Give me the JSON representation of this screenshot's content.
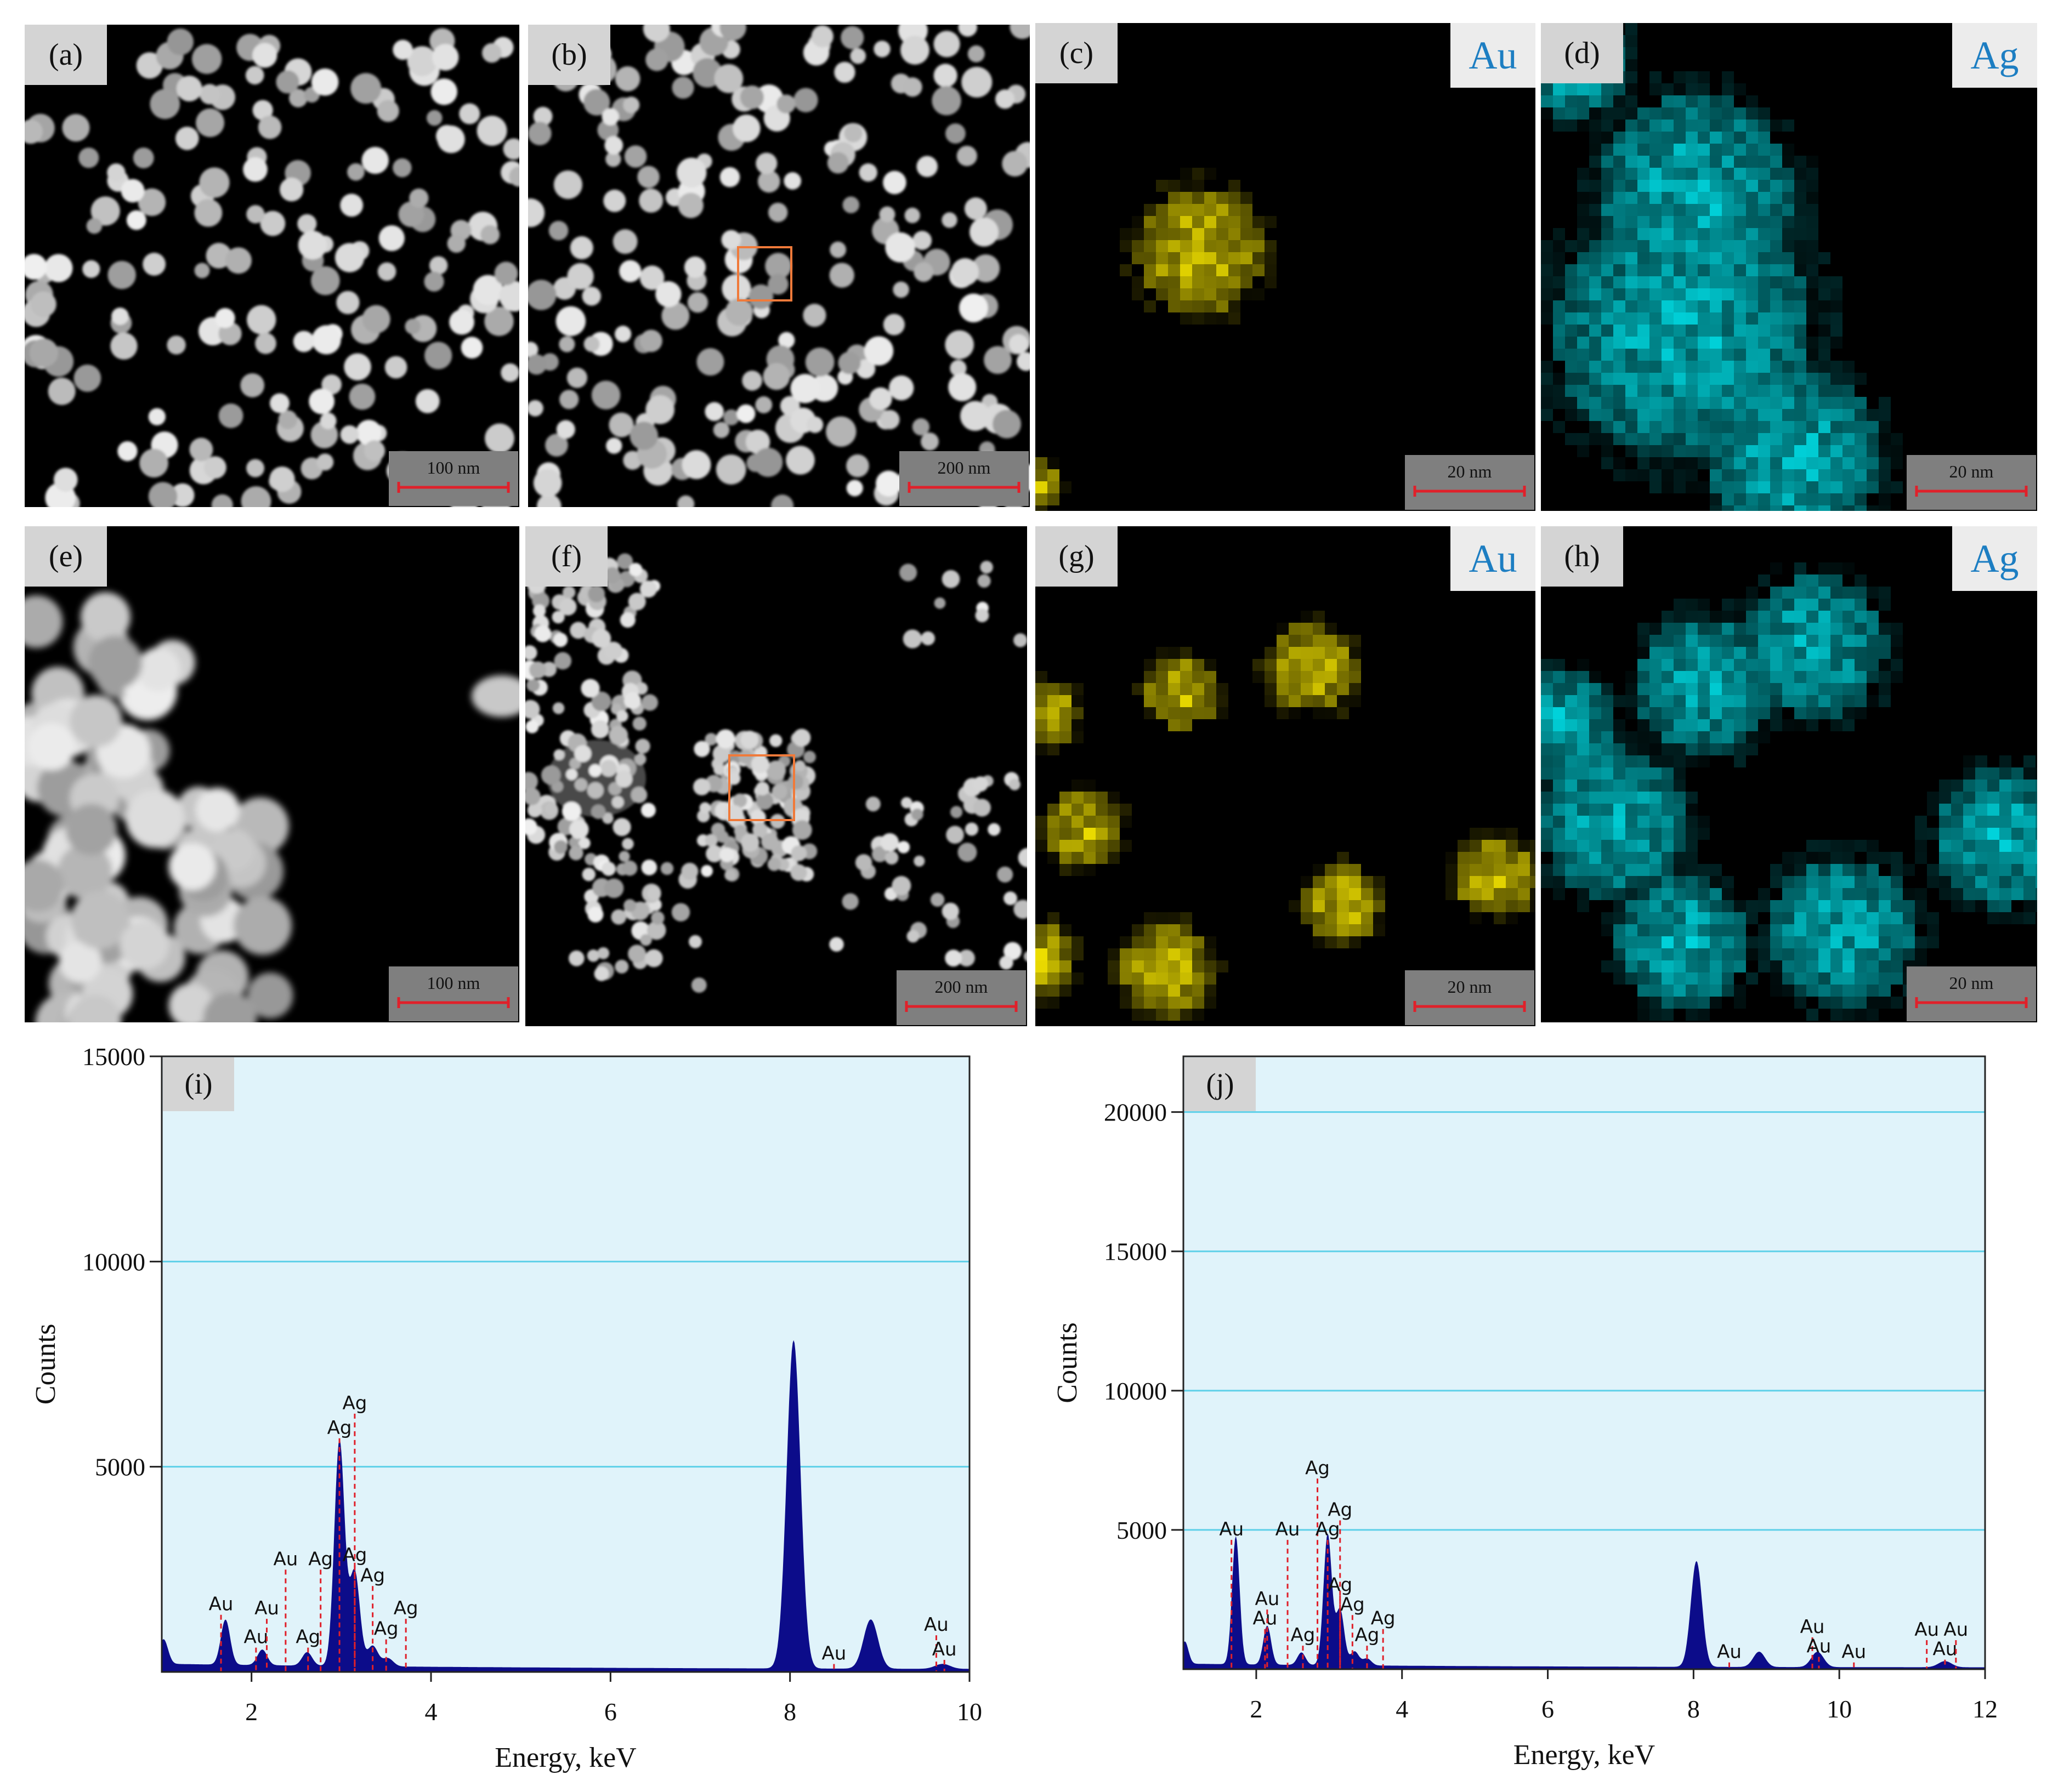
{
  "colors": {
    "au_map": "#f2e200",
    "ag_map": "#00d8e0",
    "element_label": "#1d7ec2",
    "spectrum_fill": "#0c0c8a",
    "plot_bg": "#e0f3fa",
    "gridline": "#5ed0e8",
    "marker_line": "#e0202a",
    "roi_box": "#f07a3a",
    "scalebar_line": "#e0202a"
  },
  "panels": [
    {
      "id": "a",
      "label": "(a)",
      "kind": "haadf",
      "scale": "100 nm"
    },
    {
      "id": "b",
      "label": "(b)",
      "kind": "haadf",
      "scale": "200 nm"
    },
    {
      "id": "c",
      "label": "(c)",
      "kind": "map",
      "element": "Au",
      "scale": "20 nm"
    },
    {
      "id": "d",
      "label": "(d)",
      "kind": "map",
      "element": "Ag",
      "scale": "20 nm"
    },
    {
      "id": "e",
      "label": "(e)",
      "kind": "haadf",
      "scale": "100 nm"
    },
    {
      "id": "f",
      "label": "(f)",
      "kind": "haadf",
      "scale": "200 nm"
    },
    {
      "id": "g",
      "label": "(g)",
      "kind": "map",
      "element": "Au",
      "scale": "20 nm"
    },
    {
      "id": "h",
      "label": "(h)",
      "kind": "map",
      "element": "Ag",
      "scale": "20 nm"
    }
  ],
  "chart_data": [
    {
      "type": "area",
      "panel_label": "(i)",
      "xlabel": "Energy, keV",
      "ylabel": "Counts",
      "xlim": [
        1,
        10
      ],
      "ylim": [
        0,
        15000
      ],
      "xticks": [
        2,
        4,
        6,
        8,
        10
      ],
      "yticks": [
        5000,
        10000,
        15000
      ],
      "grid": true,
      "peaks": [
        {
          "x": 1.02,
          "y": 600
        },
        {
          "x": 1.71,
          "y": 1100
        },
        {
          "x": 2.12,
          "y": 380
        },
        {
          "x": 2.62,
          "y": 330
        },
        {
          "x": 2.98,
          "y": 5500
        },
        {
          "x": 3.15,
          "y": 2300
        },
        {
          "x": 3.35,
          "y": 500
        },
        {
          "x": 3.52,
          "y": 200
        },
        {
          "x": 8.04,
          "y": 8000
        },
        {
          "x": 8.9,
          "y": 1200
        },
        {
          "x": 9.7,
          "y": 120
        }
      ],
      "markers": [
        {
          "text": "Au",
          "x": 1.66,
          "y": 1500
        },
        {
          "text": "Au",
          "x": 2.05,
          "y": 700
        },
        {
          "text": "Au",
          "x": 2.17,
          "y": 1400
        },
        {
          "text": "Au",
          "x": 2.38,
          "y": 2600
        },
        {
          "text": "Ag",
          "x": 2.63,
          "y": 700
        },
        {
          "text": "Ag",
          "x": 2.77,
          "y": 2600
        },
        {
          "text": "Ag",
          "x": 2.98,
          "y": 5800
        },
        {
          "text": "Ag",
          "x": 3.15,
          "y": 6400
        },
        {
          "text": "Ag",
          "x": 3.15,
          "y": 2700
        },
        {
          "text": "Ag",
          "x": 3.35,
          "y": 2200
        },
        {
          "text": "Ag",
          "x": 3.5,
          "y": 900
        },
        {
          "text": "Ag",
          "x": 3.72,
          "y": 1400
        },
        {
          "text": "Au",
          "x": 8.49,
          "y": 300
        },
        {
          "text": "Au",
          "x": 9.63,
          "y": 1000
        },
        {
          "text": "Au",
          "x": 9.72,
          "y": 400
        }
      ]
    },
    {
      "type": "area",
      "panel_label": "(j)",
      "xlabel": "Energy, keV",
      "ylabel": "Counts",
      "xlim": [
        1,
        12
      ],
      "ylim": [
        0,
        22000
      ],
      "xticks": [
        2,
        4,
        6,
        8,
        10,
        12
      ],
      "yticks": [
        5000,
        10000,
        15000,
        20000
      ],
      "grid": true,
      "peaks": [
        {
          "x": 1.02,
          "y": 800
        },
        {
          "x": 1.72,
          "y": 4600
        },
        {
          "x": 2.15,
          "y": 1400
        },
        {
          "x": 2.62,
          "y": 450
        },
        {
          "x": 2.98,
          "y": 4700
        },
        {
          "x": 3.15,
          "y": 2000
        },
        {
          "x": 3.35,
          "y": 500
        },
        {
          "x": 3.52,
          "y": 250
        },
        {
          "x": 8.04,
          "y": 3800
        },
        {
          "x": 8.9,
          "y": 550
        },
        {
          "x": 9.7,
          "y": 550
        },
        {
          "x": 11.45,
          "y": 220
        }
      ],
      "markers": [
        {
          "text": "Au",
          "x": 1.66,
          "y": 4800
        },
        {
          "text": "Au",
          "x": 2.12,
          "y": 1600
        },
        {
          "text": "Au",
          "x": 2.15,
          "y": 2300
        },
        {
          "text": "Au",
          "x": 2.43,
          "y": 4800
        },
        {
          "text": "Ag",
          "x": 2.64,
          "y": 1000
        },
        {
          "text": "Ag",
          "x": 2.84,
          "y": 7000
        },
        {
          "text": "Ag",
          "x": 2.98,
          "y": 4800
        },
        {
          "text": "Ag",
          "x": 3.15,
          "y": 5500
        },
        {
          "text": "Ag",
          "x": 3.15,
          "y": 2800
        },
        {
          "text": "Ag",
          "x": 3.32,
          "y": 2100
        },
        {
          "text": "Ag",
          "x": 3.52,
          "y": 1000
        },
        {
          "text": "Ag",
          "x": 3.74,
          "y": 1600
        },
        {
          "text": "Au",
          "x": 8.49,
          "y": 400
        },
        {
          "text": "Au",
          "x": 9.63,
          "y": 1300
        },
        {
          "text": "Au",
          "x": 9.72,
          "y": 600
        },
        {
          "text": "Au",
          "x": 10.2,
          "y": 400
        },
        {
          "text": "Au",
          "x": 11.2,
          "y": 1200
        },
        {
          "text": "Au",
          "x": 11.45,
          "y": 500
        },
        {
          "text": "Au",
          "x": 11.6,
          "y": 1200
        }
      ]
    }
  ]
}
